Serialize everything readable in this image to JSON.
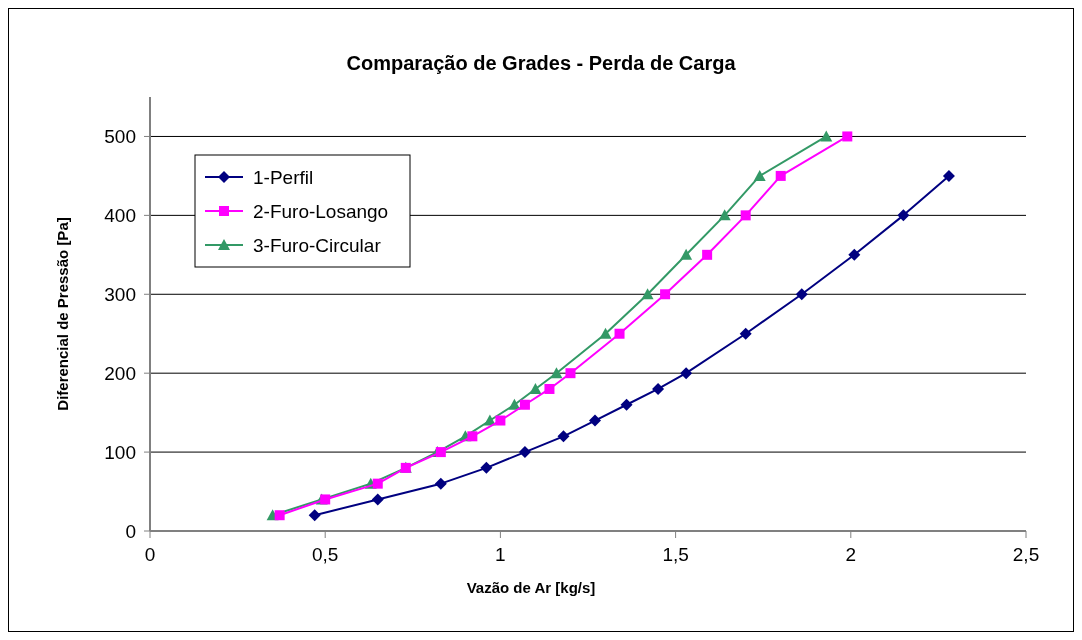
{
  "chart_data": {
    "type": "line",
    "title": "Comparação de Grades - Perda de Carga",
    "xlabel": "Vazão de Ar [kg/s]",
    "ylabel": "Diferencial de Pressão [Pa]",
    "xlim": [
      0,
      2.5
    ],
    "xticks": [
      0,
      {
        "value": 0.5,
        "label": "0,5"
      },
      1,
      {
        "value": 1.5,
        "label": "1,5"
      },
      2,
      {
        "value": 2.5,
        "label": "2,5"
      }
    ],
    "ylim": [
      0,
      550
    ],
    "yticks": [
      0,
      100,
      200,
      300,
      400,
      500
    ],
    "grid": "y",
    "legend": "top left",
    "line_style": "solid",
    "series": [
      {
        "name": "1-Perfil",
        "color": "#000080",
        "marker": "diamond",
        "x": [
          0.47,
          0.65,
          0.83,
          0.96,
          1.07,
          1.18,
          1.27,
          1.36,
          1.45,
          1.53,
          1.7,
          1.86,
          2.01,
          2.15,
          2.28
        ],
        "values": [
          20,
          40,
          60,
          80,
          100,
          120,
          140,
          160,
          180,
          200,
          250,
          300,
          350,
          400,
          450
        ]
      },
      {
        "name": "2-Furo-Losango",
        "color": "#ff00ff",
        "marker": "square",
        "x": [
          0.37,
          0.5,
          0.65,
          0.73,
          0.83,
          0.92,
          1.0,
          1.07,
          1.14,
          1.2,
          1.34,
          1.47,
          1.59,
          1.7,
          1.8,
          1.99
        ],
        "values": [
          20,
          40,
          60,
          80,
          100,
          120,
          140,
          160,
          180,
          200,
          250,
          300,
          350,
          400,
          450,
          500
        ]
      },
      {
        "name": "3-Furo-Circular",
        "color": "#339966",
        "marker": "triangle",
        "x": [
          0.35,
          0.49,
          0.63,
          0.73,
          0.82,
          0.9,
          0.97,
          1.04,
          1.1,
          1.16,
          1.3,
          1.42,
          1.53,
          1.64,
          1.74,
          1.93
        ],
        "values": [
          20,
          40,
          60,
          80,
          100,
          120,
          140,
          160,
          180,
          200,
          250,
          300,
          350,
          400,
          450,
          500
        ]
      }
    ]
  }
}
